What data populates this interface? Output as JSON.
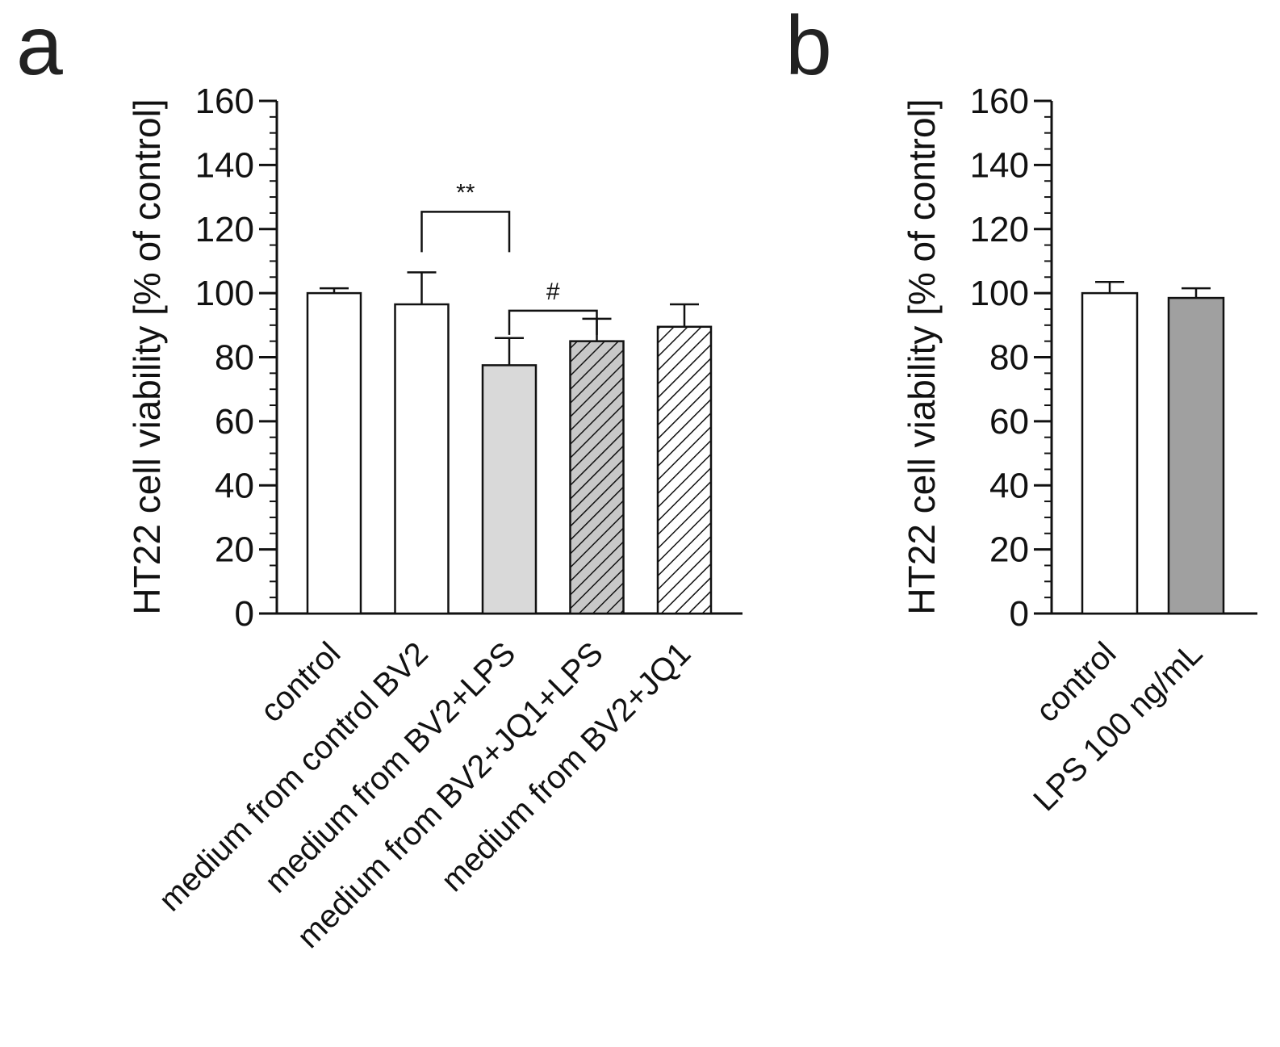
{
  "chart_data": [
    {
      "panel": "a",
      "type": "bar",
      "ylabel": "HT22 cell viability [% of control]",
      "ylim": [
        0,
        160
      ],
      "yticks": [
        0,
        20,
        40,
        60,
        80,
        100,
        120,
        140,
        160
      ],
      "categories": [
        "control",
        "medium from control BV2",
        "medium from BV2+LPS",
        "medium from BV2+JQ1+LPS",
        "medium from BV2+JQ1"
      ],
      "values": [
        100,
        96.5,
        77.5,
        85,
        89.5
      ],
      "errors": [
        1.5,
        10,
        8.5,
        7,
        7
      ],
      "fills": [
        "white",
        "white",
        "light-gray",
        "gray-hatched",
        "white-hatched"
      ],
      "significance": [
        {
          "from": 1,
          "to": 2,
          "label": "**"
        },
        {
          "from": 2,
          "to": 3,
          "label": "#"
        }
      ]
    },
    {
      "panel": "b",
      "type": "bar",
      "ylabel": "HT22 cell viability [% of control]",
      "ylim": [
        0,
        160
      ],
      "yticks": [
        0,
        20,
        40,
        60,
        80,
        100,
        120,
        140,
        160
      ],
      "categories": [
        "control",
        "LPS 100 ng/mL"
      ],
      "values": [
        100,
        98.5
      ],
      "errors": [
        3.5,
        3
      ],
      "fills": [
        "white",
        "gray"
      ],
      "significance": []
    }
  ],
  "colors": {
    "axis": "#111111",
    "bar_edge": "#111111",
    "white": "#ffffff",
    "light_gray": "#d9d9d9",
    "gray": "#a0a0a0",
    "hatch_bg_gray": "#c8c8c8"
  }
}
